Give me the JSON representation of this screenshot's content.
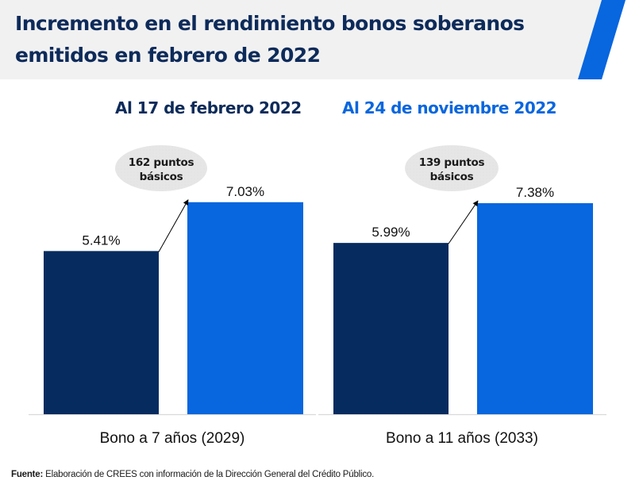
{
  "header": {
    "title_line1": "Incremento en el rendimiento bonos soberanos",
    "title_line2": "emitidos en febrero de 2022",
    "bg_color": "#f1f1f1",
    "stripe_color": "#0866de",
    "title_color": "#0d2b5a"
  },
  "colors": {
    "series_1": "#052b5f",
    "series_2": "#0866de",
    "annotation_fill": "#e6e6e6",
    "axis": "#d9d9d9"
  },
  "footer": {
    "source_label": "Fuente:",
    "source_text": " Elaboración de CREES con información de la Dirección General del Crédito Público."
  },
  "chart_data": [
    {
      "type": "bar",
      "title": "Al 17 de febrero 2022",
      "title_color": "#0d2b5a",
      "categories": [
        "Bono a 7 años (2029)"
      ],
      "series": [
        {
          "name": "Al 17 de febrero 2022",
          "values": [
            5.41
          ],
          "labels": [
            "5.41%"
          ]
        },
        {
          "name": "Al 24 de noviembre 2022",
          "values": [
            7.03
          ],
          "labels": [
            "7.03%"
          ]
        }
      ],
      "annotation": {
        "line1": "162 puntos",
        "line2": "básicos"
      },
      "xlabel": "Bono a 7 años (2029)",
      "ylabel": "",
      "ylim": [
        0,
        10.05
      ],
      "grid": false,
      "legend": "none"
    },
    {
      "type": "bar",
      "title": "Al 24 de noviembre 2022",
      "title_color": "#0866de",
      "categories": [
        "Bono a 11 años (2033)"
      ],
      "series": [
        {
          "name": "Al 17 de febrero 2022",
          "values": [
            5.99
          ],
          "labels": [
            "5.99%"
          ]
        },
        {
          "name": "Al 24 de noviembre 2022",
          "values": [
            7.38
          ],
          "labels": [
            "7.38%"
          ]
        }
      ],
      "annotation": {
        "line1": "139 puntos",
        "line2": "básicos"
      },
      "xlabel": "Bono a 11 años (2033)",
      "ylabel": "",
      "ylim": [
        0,
        10.6
      ],
      "grid": false,
      "legend": "none"
    }
  ]
}
